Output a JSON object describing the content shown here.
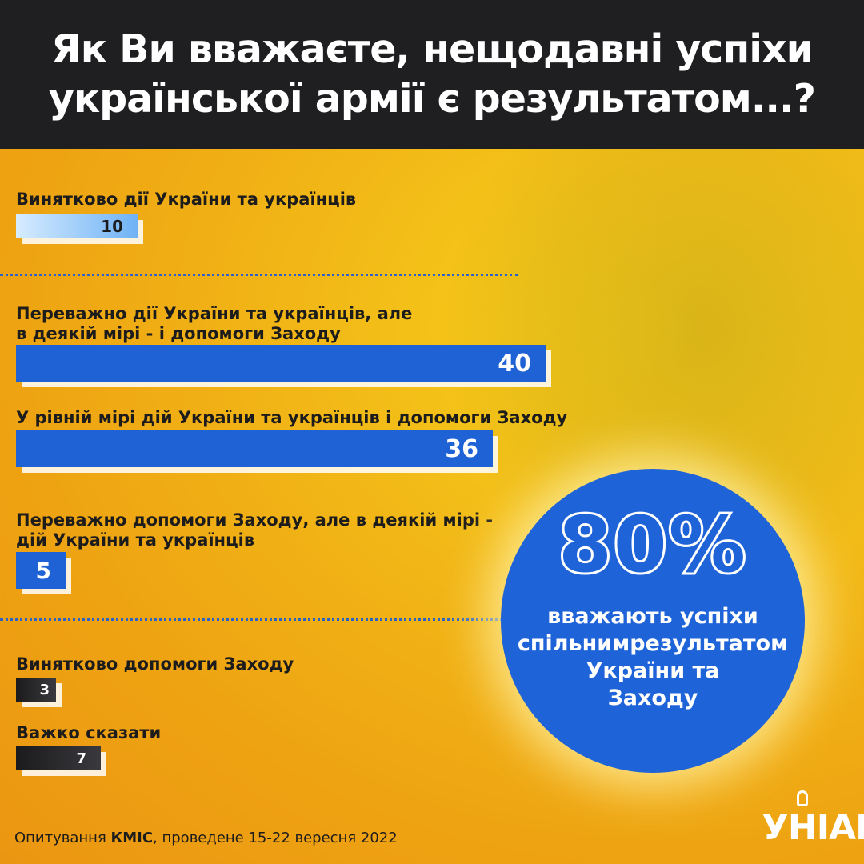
{
  "header": {
    "line1": "Як Ви вважаєте, нещодавні успіхи",
    "line2": "української армії є результатом...?"
  },
  "chart_data": {
    "type": "bar",
    "orientation": "horizontal",
    "title": "Як Ви вважаєте, нещодавні успіхи української армії є результатом...?",
    "categories": [
      "Винятково дії України та українців",
      "Переважно дії України та українців, але в деякій мірі - і допомоги Заходу",
      "У рівній мірі дій України та українців і допомоги Заходу",
      "Переважно допомоги Заходу, але в деякій мірі - дій України та українців",
      "Винятково допомоги Заходу",
      "Важко сказати"
    ],
    "values": [
      10,
      40,
      36,
      5,
      3,
      7
    ],
    "colors": [
      "#8fc3f7",
      "#1f62d6",
      "#1f62d6",
      "#1f62d6",
      "#2a2a2d",
      "#2a2a2d"
    ],
    "items": [
      {
        "label_lines": [
          "Винятково дії України та українців"
        ],
        "value": 10,
        "value_label": "10",
        "style": "light"
      },
      {
        "label_lines": [
          "Переважно дії України та українців, але",
          "в деякій мірі - і допомоги Заходу"
        ],
        "value": 40,
        "value_label": "40",
        "style": "blue"
      },
      {
        "label_lines": [
          "У рівній мірі дій України та українців і допомоги Заходу"
        ],
        "value": 36,
        "value_label": "36",
        "style": "blue"
      },
      {
        "label_lines": [
          "Переважно допомоги Заходу, але в деякій мірі -",
          "дій України та українців"
        ],
        "value": 5,
        "value_label": "5",
        "style": "blue"
      },
      {
        "label_lines": [
          "Винятково допомоги Заходу"
        ],
        "value": 3,
        "value_label": "3",
        "style": "dark"
      },
      {
        "label_lines": [
          "Важко сказати"
        ],
        "value": 7,
        "value_label": "7",
        "style": "dark"
      }
    ],
    "xlim": [
      0,
      40
    ],
    "grid": false,
    "legend": "none"
  },
  "highlight": {
    "value": "80%",
    "lines": [
      "вважають успіхи",
      "спільнимрезультатом",
      "України та",
      "Заходу"
    ]
  },
  "footer": {
    "prefix": "Опитування ",
    "org": "КМІС",
    "suffix": ", проведене 15-22 вересня 2022"
  },
  "logo": {
    "text": "УНІАН"
  },
  "colors": {
    "background": "#f2b817",
    "header_bg": "#1f1f22",
    "accent_blue": "#1f62d6"
  }
}
